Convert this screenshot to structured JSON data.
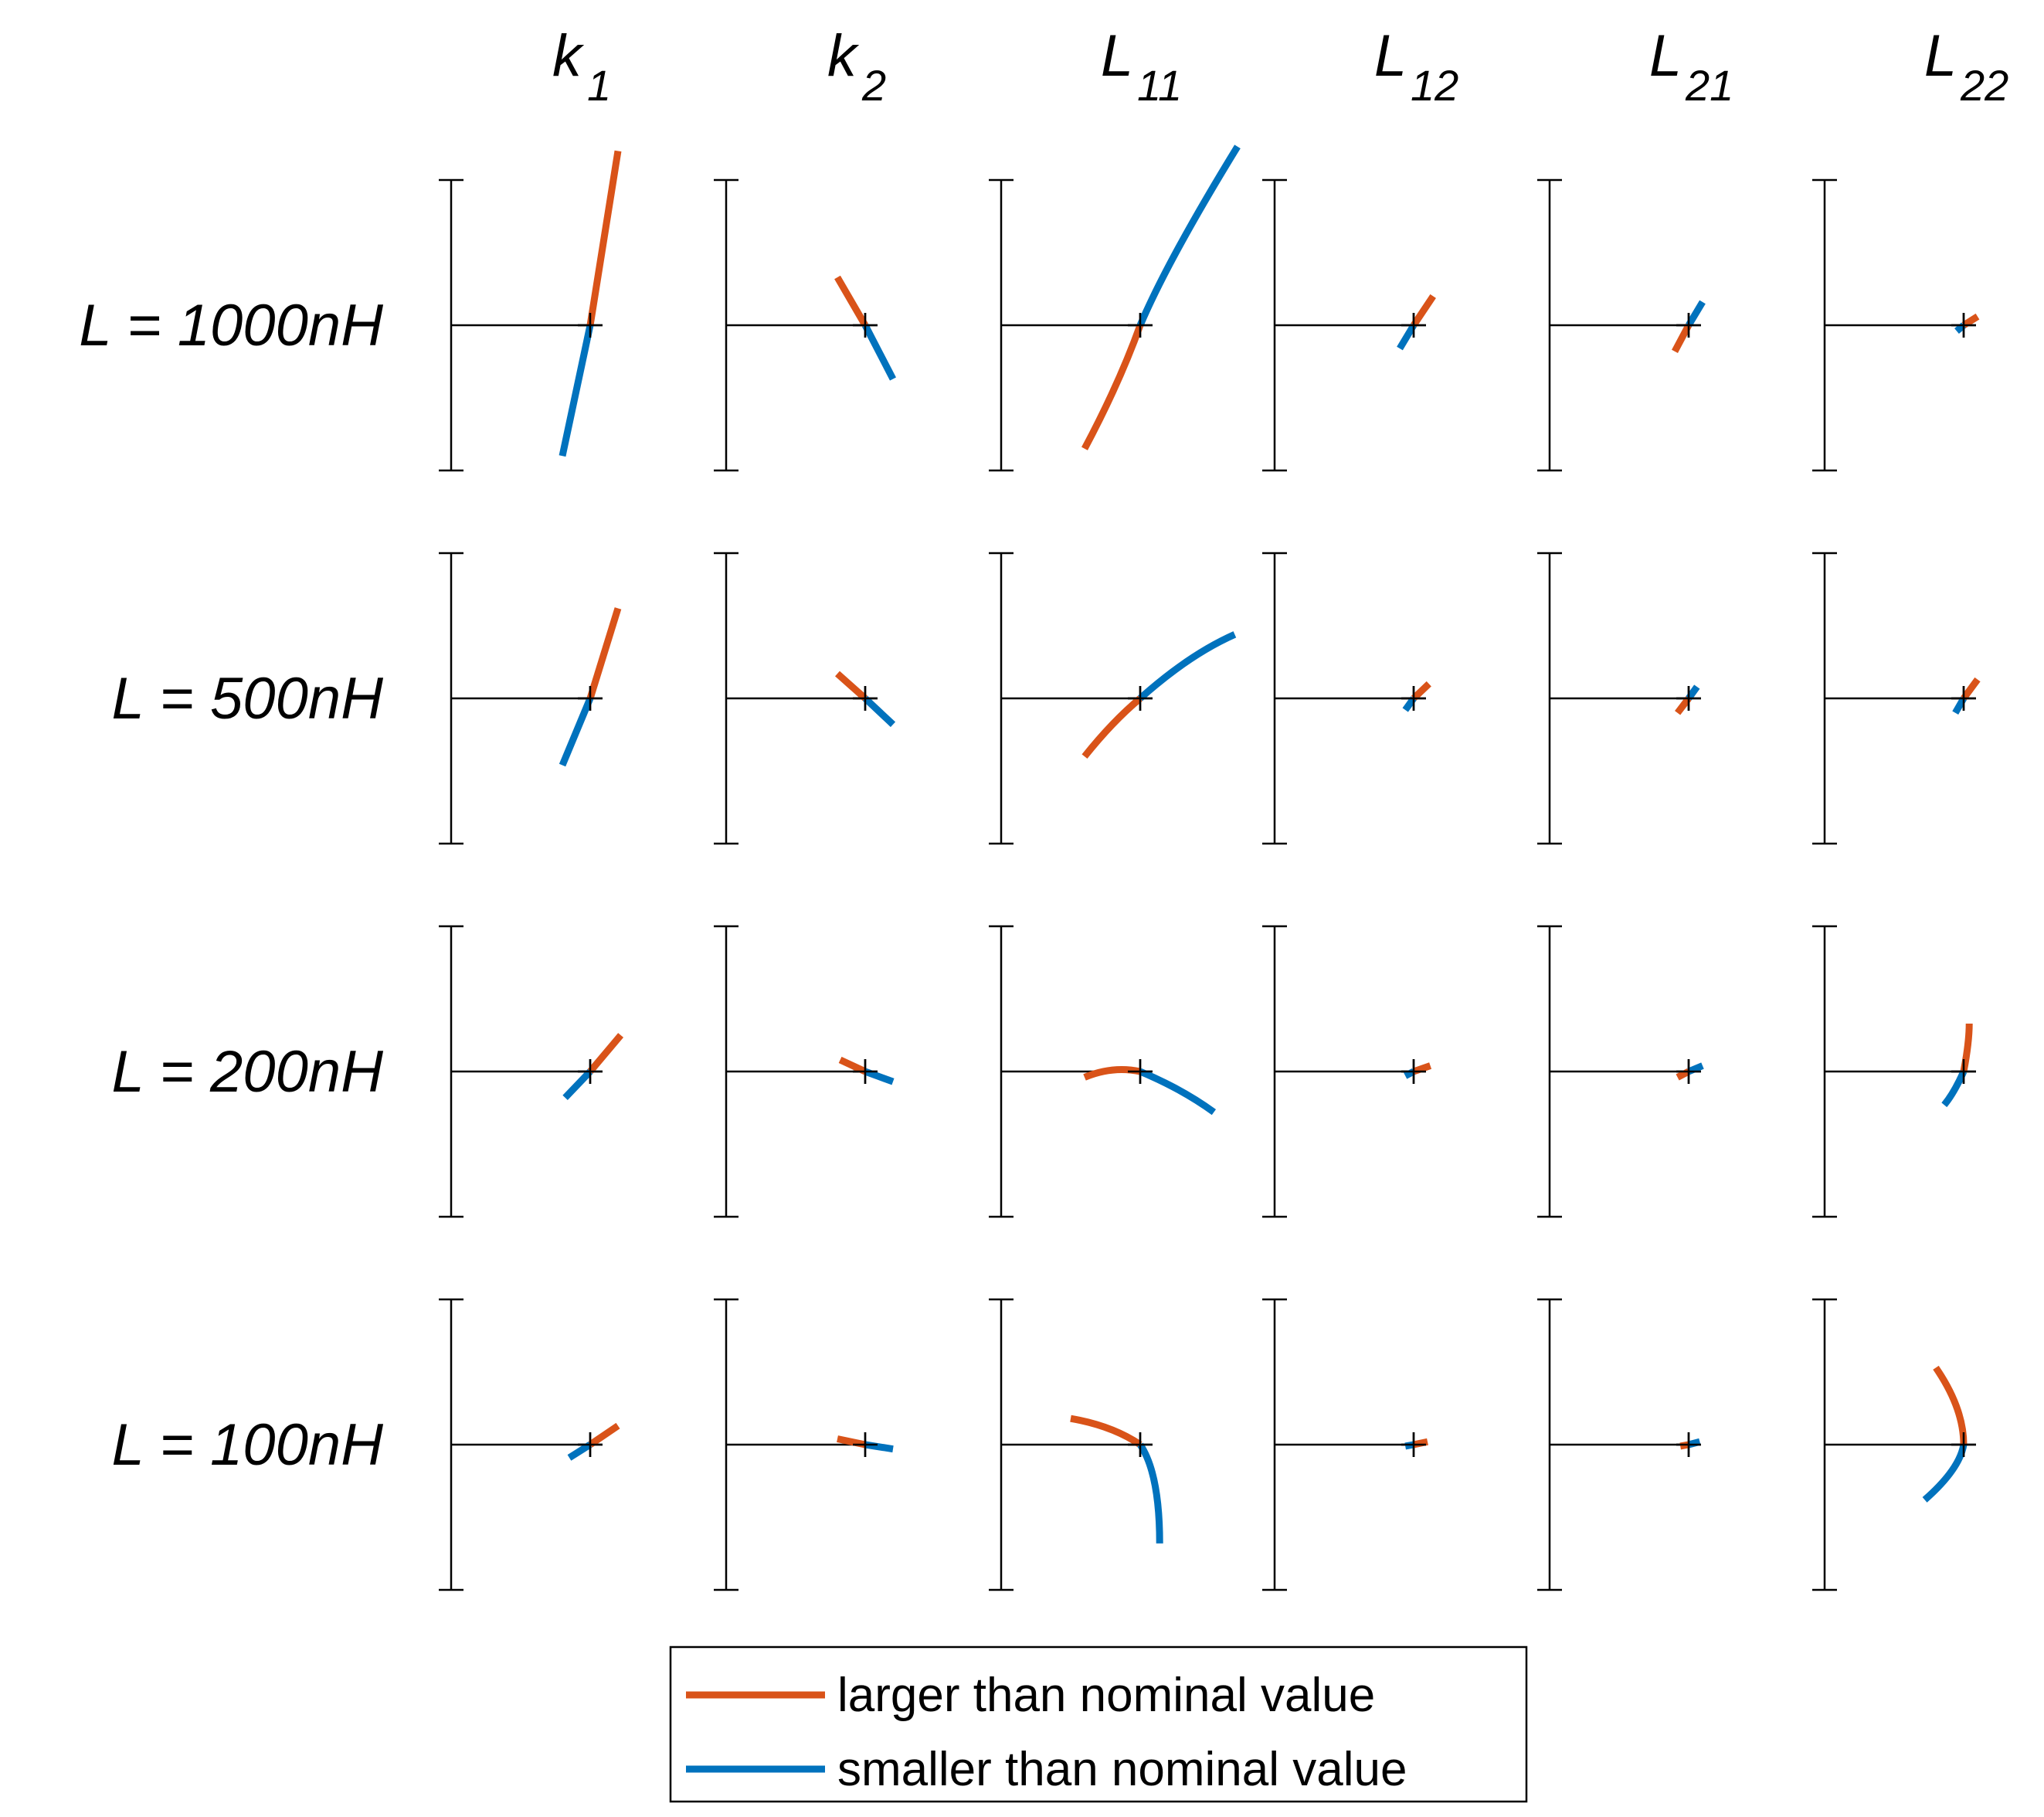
{
  "chart_data": {
    "type": "line",
    "description_type": "small-multiples",
    "columns": [
      {
        "base": "k",
        "sub": "1"
      },
      {
        "base": "k",
        "sub": "2"
      },
      {
        "base": "L",
        "sub": "11"
      },
      {
        "base": "L",
        "sub": "12"
      },
      {
        "base": "L",
        "sub": "21"
      },
      {
        "base": "L",
        "sub": "22"
      }
    ],
    "rows": [
      "L = 1000nH",
      "L = 500nH",
      "L = 200nH",
      "L = 100nH"
    ],
    "colors": {
      "larger": "#D95319",
      "smaller": "#0072BD"
    },
    "legend": {
      "location": "bottom",
      "larger": "larger than nominal value",
      "smaller": "smaller than nominal value"
    },
    "axis_range": {
      "x": [
        -1,
        1
      ],
      "y": [
        -1,
        1
      ]
    },
    "series": [
      [
        {
          "larger": [
            [
              0,
              0
            ],
            [
              0.2,
              1.2
            ]
          ],
          "smaller": [
            [
              0,
              0
            ],
            [
              -0.2,
              -0.9
            ]
          ]
        },
        {
          "larger": [
            [
              0,
              0
            ],
            [
              -0.2,
              0.33
            ]
          ],
          "smaller": [
            [
              0,
              0
            ],
            [
              0.2,
              -0.37
            ]
          ]
        },
        {
          "larger": [
            [
              0,
              0
            ],
            [
              -0.15,
              -0.4
            ],
            [
              -0.4,
              -0.85
            ]
          ],
          "smaller": [
            [
              0,
              0
            ],
            [
              0.2,
              0.45
            ],
            [
              0.7,
              1.23
            ]
          ]
        },
        {
          "larger": [
            [
              0,
              0
            ],
            [
              0.14,
              0.2
            ]
          ],
          "smaller": [
            [
              0,
              0
            ],
            [
              -0.1,
              -0.16
            ]
          ]
        },
        {
          "larger": [
            [
              0,
              0
            ],
            [
              -0.1,
              -0.18
            ]
          ],
          "smaller": [
            [
              0,
              0
            ],
            [
              0.1,
              0.16
            ]
          ]
        },
        {
          "larger": [
            [
              0,
              0
            ],
            [
              0.1,
              0.06
            ]
          ],
          "smaller": [
            [
              0,
              0
            ],
            [
              -0.05,
              -0.04
            ]
          ]
        }
      ],
      [
        {
          "larger": [
            [
              0,
              0
            ],
            [
              0.2,
              0.62
            ]
          ],
          "smaller": [
            [
              0,
              0
            ],
            [
              -0.2,
              -0.46
            ]
          ]
        },
        {
          "larger": [
            [
              0,
              0
            ],
            [
              -0.2,
              0.17
            ]
          ],
          "smaller": [
            [
              0,
              0
            ],
            [
              0.2,
              -0.18
            ]
          ]
        },
        {
          "larger": [
            [
              0,
              0
            ],
            [
              -0.2,
              -0.16
            ],
            [
              -0.4,
              -0.4
            ]
          ],
          "smaller": [
            [
              0,
              0
            ],
            [
              0.35,
              0.3
            ],
            [
              0.68,
              0.44
            ]
          ]
        },
        {
          "larger": [
            [
              0,
              0
            ],
            [
              0.11,
              0.1
            ]
          ],
          "smaller": [
            [
              0,
              0
            ],
            [
              -0.06,
              -0.08
            ]
          ]
        },
        {
          "larger": [
            [
              0,
              0
            ],
            [
              -0.08,
              -0.1
            ]
          ],
          "smaller": [
            [
              0,
              0
            ],
            [
              0.06,
              0.08
            ]
          ]
        },
        {
          "larger": [
            [
              0,
              0
            ],
            [
              0.1,
              0.13
            ]
          ],
          "smaller": [
            [
              0,
              0
            ],
            [
              -0.06,
              -0.1
            ]
          ]
        }
      ],
      [
        {
          "larger": [
            [
              0,
              0
            ],
            [
              0.22,
              0.25
            ]
          ],
          "smaller": [
            [
              0,
              0
            ],
            [
              -0.18,
              -0.18
            ]
          ]
        },
        {
          "larger": [
            [
              0,
              0
            ],
            [
              -0.18,
              0.08
            ]
          ],
          "smaller": [
            [
              0,
              0
            ],
            [
              0.2,
              -0.07
            ]
          ]
        },
        {
          "larger": [
            [
              0,
              0
            ],
            [
              -0.2,
              0.04
            ],
            [
              -0.4,
              -0.04
            ]
          ],
          "smaller": [
            [
              0,
              0
            ],
            [
              0.3,
              -0.12
            ],
            [
              0.53,
              -0.28
            ]
          ]
        },
        {
          "larger": [
            [
              0,
              0
            ],
            [
              0.12,
              0.04
            ]
          ],
          "smaller": [
            [
              0,
              0
            ],
            [
              -0.06,
              -0.03
            ]
          ]
        },
        {
          "larger": [
            [
              0,
              0
            ],
            [
              -0.08,
              -0.04
            ]
          ],
          "smaller": [
            [
              0,
              0
            ],
            [
              0.1,
              0.04
            ]
          ]
        },
        {
          "larger": [
            [
              0,
              0
            ],
            [
              0.04,
              0.2
            ],
            [
              0.04,
              0.33
            ]
          ],
          "smaller": [
            [
              0,
              0
            ],
            [
              -0.07,
              -0.15
            ],
            [
              -0.14,
              -0.23
            ]
          ]
        }
      ],
      [
        {
          "larger": [
            [
              0,
              0
            ],
            [
              0.2,
              0.13
            ]
          ],
          "smaller": [
            [
              0,
              0
            ],
            [
              -0.15,
              -0.09
            ]
          ]
        },
        {
          "larger": [
            [
              0,
              0
            ],
            [
              -0.2,
              0.04
            ]
          ],
          "smaller": [
            [
              0,
              0
            ],
            [
              0.2,
              -0.03
            ]
          ]
        },
        {
          "larger": [
            [
              0,
              0
            ],
            [
              -0.2,
              0.13
            ],
            [
              -0.5,
              0.18
            ]
          ],
          "smaller": [
            [
              0,
              0
            ],
            [
              0.14,
              -0.2
            ],
            [
              0.14,
              -0.68
            ]
          ]
        },
        {
          "larger": [
            [
              0,
              0
            ],
            [
              0.1,
              0.02
            ]
          ],
          "smaller": [
            [
              0,
              0
            ],
            [
              -0.06,
              -0.01
            ]
          ]
        },
        {
          "larger": [
            [
              0,
              0
            ],
            [
              -0.06,
              -0.01
            ]
          ],
          "smaller": [
            [
              0,
              0
            ],
            [
              0.08,
              0.02
            ]
          ]
        },
        {
          "larger": [
            [
              0,
              0
            ],
            [
              0,
              0.25
            ],
            [
              -0.2,
              0.53
            ]
          ],
          "smaller": [
            [
              0,
              0
            ],
            [
              -0.03,
              -0.17
            ],
            [
              -0.28,
              -0.38
            ]
          ]
        }
      ]
    ]
  }
}
